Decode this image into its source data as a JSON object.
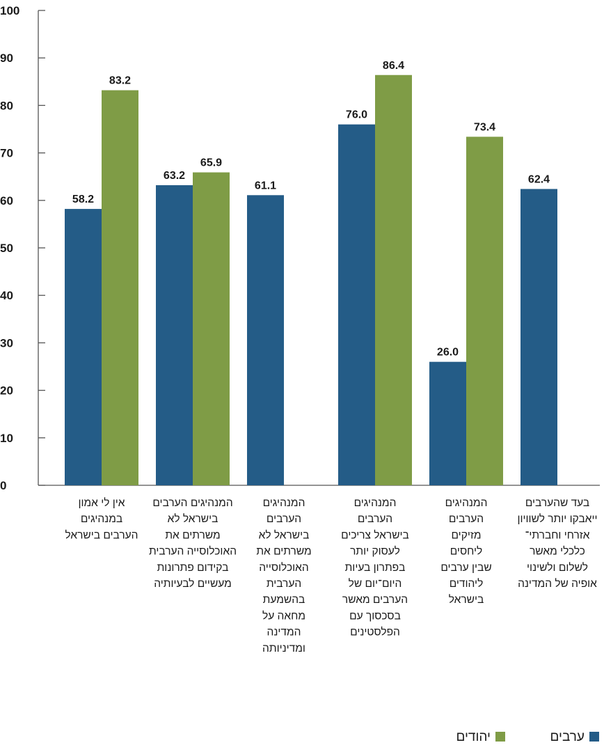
{
  "chart_data": {
    "type": "bar",
    "ylim": [
      0,
      100
    ],
    "yticks": [
      0,
      10,
      20,
      30,
      40,
      50,
      60,
      70,
      80,
      90,
      100
    ],
    "grid": false,
    "legend_position": "bottom-right",
    "categories": [
      [
        "אין לי אמון",
        "במנהיגים",
        "הערבים בישראל"
      ],
      [
        "המנהיגים הערבים",
        "בישראל לא",
        "משרתים את",
        "האוכלוסייה הערבית",
        "בקידום  פתרונות",
        "מעשיים לבעיותיה"
      ],
      [
        "המנהיגים",
        "הערבים",
        "בישראל לא",
        "משרתים את",
        "האוכלוסייה",
        "הערבית",
        "בהשמעת",
        "מחאה על",
        "המדינה",
        "ומדיניותה"
      ],
      [
        "המנהיגים",
        "הערבים",
        "בישראל צריכים",
        "לעסוק יותר",
        "בפתרון בעיות",
        "היום־יום של",
        "הערבים מאשר",
        "בסכסוך עם",
        "הפלסטינים"
      ],
      [
        "המנהיגים",
        "הערבים",
        "מזיקים",
        "ליחסים",
        "שבין ערבים",
        "ליהודים",
        "בישראל"
      ],
      [
        "בעד שהערבים",
        "ייאבקו יותר לשוויון",
        "אזרחי וחברתי־",
        "כלכלי מאשר",
        "לשלום ולשינוי",
        "אופיה של המדינה"
      ]
    ],
    "series": [
      {
        "name": "ערבים",
        "color": "#245c87",
        "values": [
          58.2,
          63.2,
          61.1,
          76.0,
          26.0,
          62.4
        ]
      },
      {
        "name": "יהודים",
        "color": "#7f9c46",
        "values": [
          83.2,
          65.9,
          null,
          86.4,
          73.4,
          null
        ]
      }
    ]
  }
}
